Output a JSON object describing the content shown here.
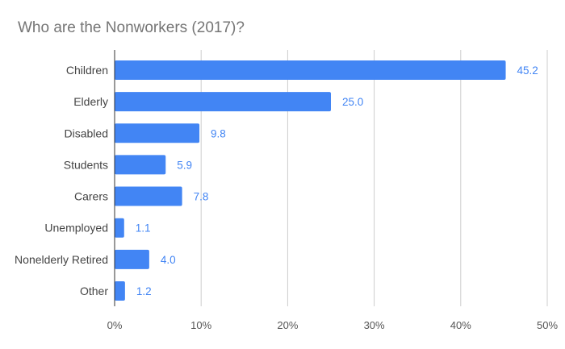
{
  "chart_data": {
    "type": "bar",
    "orientation": "horizontal",
    "title": "Who are the Nonworkers (2017)?",
    "xlabel": "",
    "ylabel": "",
    "categories": [
      "Children",
      "Elderly",
      "Disabled",
      "Students",
      "Carers",
      "Unemployed",
      "Nonelderly Retired",
      "Other"
    ],
    "values": [
      45.2,
      25.0,
      9.8,
      5.9,
      7.8,
      1.1,
      4.0,
      1.2
    ],
    "data_labels": [
      "45.2",
      "25.0",
      "9.8",
      "5.9",
      "7.8",
      "1.1",
      "4.0",
      "1.2"
    ],
    "xlim": [
      0,
      50
    ],
    "x_ticks": [
      0,
      10,
      20,
      30,
      40,
      50
    ],
    "x_tick_labels": [
      "0%",
      "10%",
      "20%",
      "30%",
      "40%",
      "50%"
    ],
    "grid": true,
    "legend": "none",
    "colors": {
      "bar": "#4285f4",
      "data_label": "#4285f4",
      "title": "#757575",
      "category_label": "#444444",
      "tick_label": "#555555",
      "grid": "#cccccc",
      "axis": "#333333"
    }
  }
}
